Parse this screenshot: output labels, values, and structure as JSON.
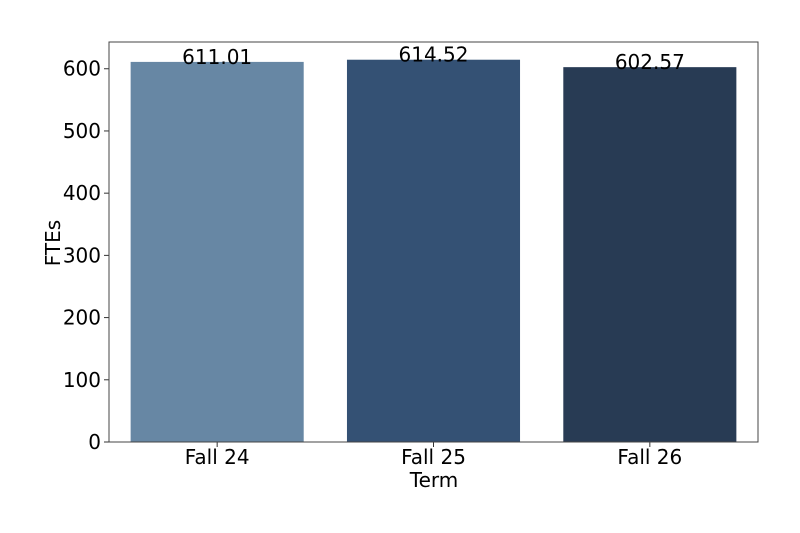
{
  "chart_data": {
    "type": "bar",
    "x_label": "Term",
    "y_label": "FTEs",
    "categories": [
      "Fall 24",
      "Fall 25",
      "Fall 26"
    ],
    "values": [
      611.01,
      614.52,
      602.57
    ],
    "colors": [
      "#6787a4",
      "#345174",
      "#283b54"
    ],
    "ylim": [
      0,
      643
    ],
    "yticks": [
      0,
      100,
      200,
      300,
      400,
      500,
      600
    ],
    "grid": false
  }
}
